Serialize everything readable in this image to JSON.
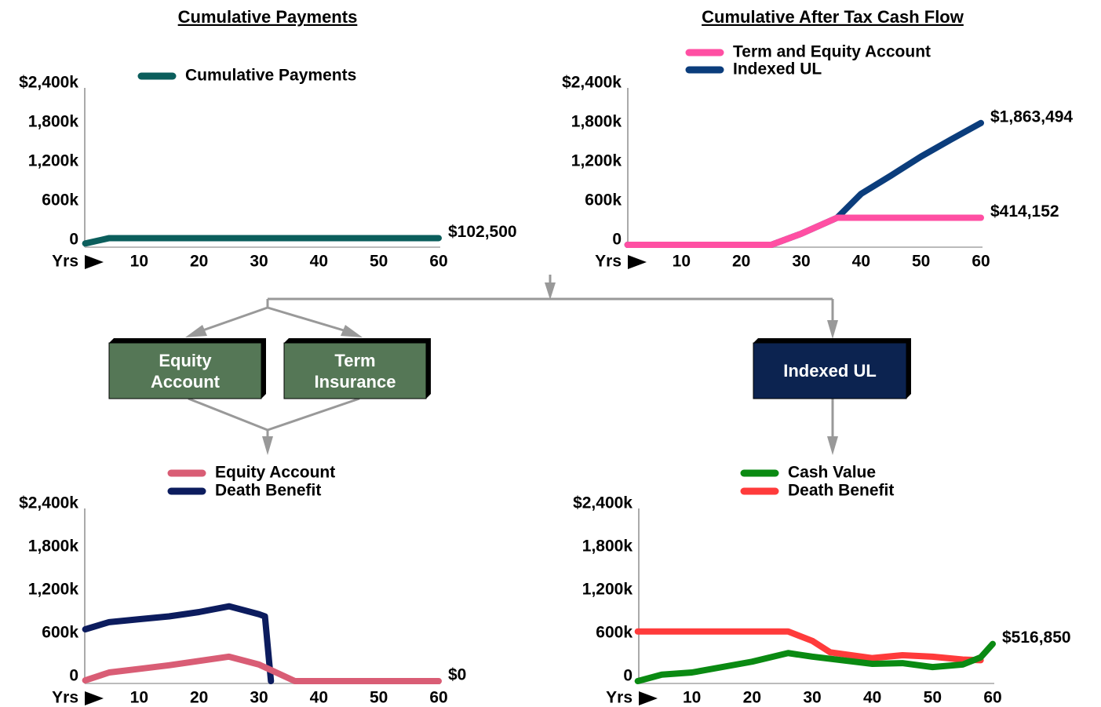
{
  "chart_data": [
    {
      "type": "line",
      "title": "Cumulative Payments",
      "xlabel": "Yrs",
      "xlim": [
        0,
        60
      ],
      "xticks": [
        10,
        20,
        30,
        40,
        50,
        60
      ],
      "ylim": [
        0,
        2400000
      ],
      "yticks": [
        0,
        {
          "value": 600000,
          "label": "600k"
        },
        {
          "value": 1200000,
          "label": "1,200k"
        },
        {
          "value": 1800000,
          "label": "1,800k"
        },
        {
          "value": 2400000,
          "label": "$2,400k"
        }
      ],
      "series": [
        {
          "name": "Cumulative Payments",
          "color": "#0b5e5c",
          "x": [
            1,
            5,
            60
          ],
          "values": [
            20500,
            102500,
            102500
          ],
          "value_labels": [
            null,
            null,
            "$102,500"
          ]
        }
      ]
    },
    {
      "type": "line",
      "title": "Cumulative After Tax Cash Flow",
      "xlabel": "Yrs",
      "xlim": [
        0,
        60
      ],
      "xticks": [
        10,
        20,
        30,
        40,
        50,
        60
      ],
      "ylim": [
        0,
        2400000
      ],
      "yticks": [
        0,
        {
          "value": 600000,
          "label": "600k"
        },
        {
          "value": 1200000,
          "label": "1,200k"
        },
        {
          "value": 1800000,
          "label": "1,800k"
        },
        {
          "value": 2400000,
          "label": "$2,400k"
        }
      ],
      "series": [
        {
          "name": "Indexed UL",
          "color": "#0b3d7c",
          "x": [
            1,
            25,
            30,
            36,
            40,
            45,
            50,
            55,
            60
          ],
          "values": [
            0,
            0,
            170000,
            414152,
            780000,
            1060000,
            1350000,
            1610000,
            1863494
          ],
          "value_labels": [
            null,
            null,
            null,
            null,
            null,
            null,
            null,
            null,
            "$1,863,494"
          ]
        },
        {
          "name": "Term and Equity Account",
          "color": "#ff4fa3",
          "x": [
            1,
            25,
            30,
            36,
            60
          ],
          "values": [
            0,
            0,
            170000,
            414152,
            414152
          ],
          "value_labels": [
            null,
            null,
            null,
            null,
            "$414,152"
          ]
        }
      ],
      "legend_order": [
        "Term and Equity Account",
        "Indexed UL"
      ]
    },
    {
      "type": "line",
      "xlabel": "Yrs",
      "xlim": [
        0,
        60
      ],
      "xticks": [
        10,
        20,
        30,
        40,
        50,
        60
      ],
      "ylim": [
        0,
        2400000
      ],
      "yticks": [
        0,
        {
          "value": 600000,
          "label": "600k"
        },
        {
          "value": 1200000,
          "label": "1,200k"
        },
        {
          "value": 1800000,
          "label": "1,800k"
        },
        {
          "value": 2400000,
          "label": "$2,400k"
        }
      ],
      "series": [
        {
          "name": "Death Benefit",
          "color": "#0c1c5e",
          "x": [
            1,
            5,
            10,
            15,
            20,
            25,
            30,
            31,
            32
          ],
          "values": [
            720000,
            820000,
            860000,
            900000,
            960000,
            1040000,
            930000,
            900000,
            0
          ]
        },
        {
          "name": "Equity Account",
          "color": "#d95d75",
          "x": [
            1,
            5,
            10,
            15,
            20,
            25,
            30,
            36,
            60
          ],
          "values": [
            10000,
            120000,
            170000,
            220000,
            280000,
            340000,
            230000,
            0,
            0
          ],
          "value_labels": [
            null,
            null,
            null,
            null,
            null,
            null,
            null,
            null,
            "$0"
          ]
        }
      ],
      "legend_order": [
        "Equity Account",
        "Death Benefit"
      ]
    },
    {
      "type": "line",
      "xlabel": "Yrs",
      "xlim": [
        0,
        60
      ],
      "xticks": [
        10,
        20,
        30,
        40,
        50,
        60
      ],
      "ylim": [
        0,
        2400000
      ],
      "yticks": [
        0,
        {
          "value": 600000,
          "label": "600k"
        },
        {
          "value": 1200000,
          "label": "1,200k"
        },
        {
          "value": 1800000,
          "label": "1,800k"
        },
        {
          "value": 2400000,
          "label": "$2,400k"
        }
      ],
      "series": [
        {
          "name": "Death Benefit",
          "color": "#ff3b3b",
          "x": [
            1,
            26,
            30,
            33,
            40,
            45,
            50,
            55,
            58
          ],
          "values": [
            690000,
            690000,
            560000,
            400000,
            320000,
            360000,
            340000,
            300000,
            290000
          ]
        },
        {
          "name": "Cash Value",
          "color": "#0a8a12",
          "x": [
            1,
            5,
            10,
            20,
            26,
            30,
            40,
            45,
            50,
            55,
            58,
            60
          ],
          "values": [
            0,
            90000,
            120000,
            270000,
            390000,
            340000,
            240000,
            250000,
            195000,
            230000,
            330000,
            516850
          ],
          "value_labels": [
            null,
            null,
            null,
            null,
            null,
            null,
            null,
            null,
            null,
            null,
            null,
            "$516,850"
          ]
        }
      ],
      "legend_order": [
        "Cash Value",
        "Death Benefit"
      ]
    }
  ],
  "diagram": {
    "nodes": [
      {
        "label": "Equity Account"
      },
      {
        "label": "Term Insurance"
      },
      {
        "label": "Indexed UL"
      }
    ]
  }
}
